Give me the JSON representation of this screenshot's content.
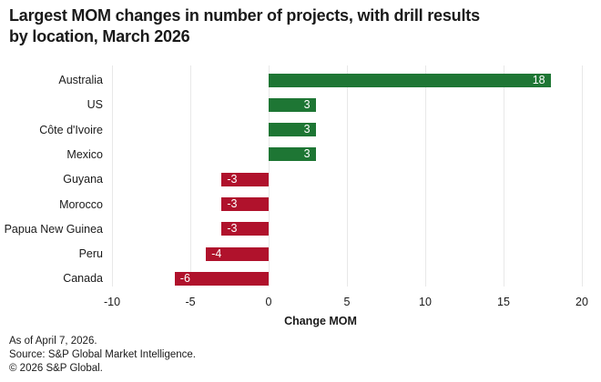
{
  "title": {
    "line1": "Largest MOM changes in number of projects, with drill results",
    "line2": "by location, March 2026"
  },
  "chart_data": {
    "type": "bar",
    "orientation": "horizontal",
    "categories": [
      "Australia",
      "US",
      "Côte d'Ivoire",
      "Mexico",
      "Guyana",
      "Morocco",
      "Papua New Guinea",
      "Peru",
      "Canada"
    ],
    "values": [
      18,
      3,
      3,
      3,
      -3,
      -3,
      -3,
      -4,
      -6
    ],
    "bar_labels": [
      "18",
      "3",
      "3",
      "3",
      "-3",
      "-3",
      "-3",
      "-4",
      "-6"
    ],
    "xlabel": "Change MOM",
    "ylabel": "",
    "xticks": [
      -10,
      -5,
      0,
      5,
      10,
      15,
      20
    ],
    "xtick_labels": [
      "-10",
      "-5",
      "0",
      "5",
      "10",
      "15",
      "20"
    ],
    "xlim": [
      -10,
      20
    ],
    "grid": true,
    "legend": false,
    "colors": {
      "positive": "#1e7634",
      "negative": "#b0122c",
      "gridline": "#e8e8e8",
      "bar_label": "#ffffff",
      "text": "#1a1a1a"
    }
  },
  "footer": {
    "lines": [
      "As of April 7, 2026.",
      "Source: S&P Global Market Intelligence.",
      "© 2026 S&P Global."
    ]
  }
}
